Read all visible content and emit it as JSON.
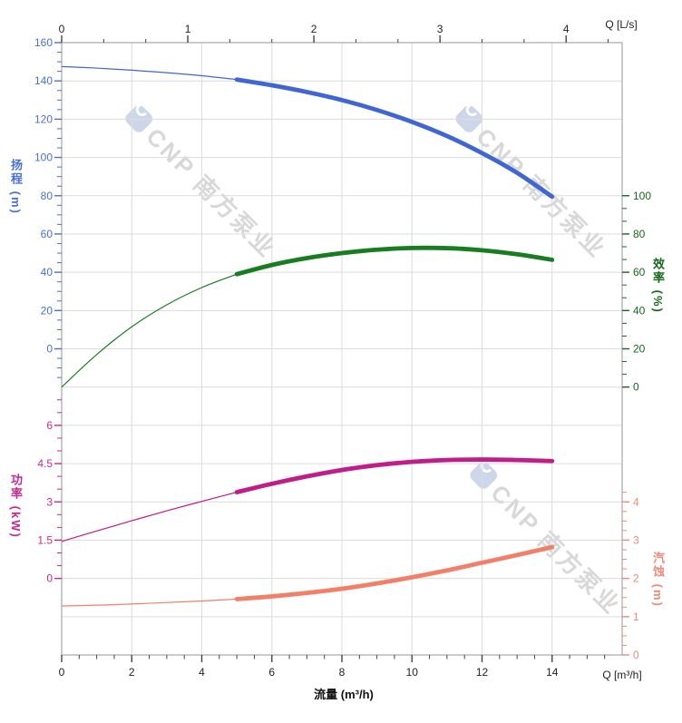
{
  "watermark": {
    "text": "CNP 南方泵业"
  },
  "chart_data": {
    "type": "line",
    "x_label_bottom": "流量 (m³/h)",
    "x_unit_bottom": "Q [m³/h]",
    "x_unit_top": "Q [L/s]",
    "x_m3h": [
      0,
      1,
      2,
      3,
      4,
      5,
      6,
      7,
      8,
      9,
      10,
      11,
      12,
      13,
      14
    ],
    "x_range_m3h": [
      0,
      16
    ],
    "x_range_Ls": [
      0,
      4.44
    ],
    "grid": true,
    "series": [
      {
        "id": "head",
        "name": "扬程",
        "unit": "m",
        "axis": "head",
        "color": "#3f66d4",
        "thick_from_x": 5,
        "values": [
          147.5,
          146.7,
          145.6,
          144.3,
          142.7,
          140.7,
          137.7,
          134.2,
          130.0,
          124.8,
          118.6,
          111.2,
          102.3,
          92.0,
          79.5
        ]
      },
      {
        "id": "eff",
        "name": "效率",
        "unit": "%",
        "axis": "eff",
        "color": "#187d20",
        "thick_from_x": 5,
        "values": [
          0,
          17,
          31.5,
          43,
          52,
          59,
          63.8,
          67.4,
          70.0,
          71.8,
          72.7,
          72.6,
          71.5,
          69.4,
          66.5
        ]
      },
      {
        "id": "power",
        "name": "功率",
        "unit": "kW",
        "axis": "power",
        "color": "#bf1d87",
        "thick_from_x": 5,
        "values": [
          1.45,
          1.86,
          2.26,
          2.65,
          3.02,
          3.38,
          3.71,
          4.0,
          4.25,
          4.44,
          4.57,
          4.64,
          4.66,
          4.64,
          4.6
        ]
      },
      {
        "id": "npsh",
        "name": "汽蚀",
        "unit": "m",
        "axis": "npsh",
        "color": "#f28069",
        "thick_from_x": 5,
        "values": [
          1.28,
          1.3,
          1.33,
          1.37,
          1.41,
          1.46,
          1.53,
          1.62,
          1.73,
          1.87,
          2.03,
          2.21,
          2.41,
          2.61,
          2.82
        ]
      }
    ],
    "axes": {
      "top": {
        "label": "Q [L/s]",
        "ticks": [
          "0",
          "1",
          "2",
          "3",
          "4"
        ],
        "tick_color": "#444",
        "label_color": "#222"
      },
      "bottom": {
        "label": "Q [m³/h]",
        "title": "流量 (m³/h)",
        "ticks": [
          "0",
          "2",
          "4",
          "6",
          "8",
          "10",
          "12",
          "14"
        ],
        "tick_color": "#444",
        "label_color": "#222"
      },
      "head": {
        "title": "扬程 (m)",
        "ticks": [
          "160",
          "140",
          "120",
          "100",
          "80",
          "60",
          "40",
          "20",
          "0"
        ],
        "color": "#4a70d6",
        "side": "left"
      },
      "eff": {
        "title": "效率 (%)",
        "ticks": [
          "100",
          "80",
          "60",
          "40",
          "20",
          "0"
        ],
        "color": "#14691c",
        "side": "right"
      },
      "power": {
        "title": "功率 (kW)",
        "ticks": [
          "6",
          "4.5",
          "3",
          "1.5",
          "0"
        ],
        "color": "#c52a92",
        "side": "left"
      },
      "npsh": {
        "title": "汽蚀 (m)",
        "ticks": [
          "4",
          "3",
          "2",
          "1",
          "0"
        ],
        "color": "#f28977",
        "side": "right"
      }
    },
    "colors": {
      "grid": "#dcdcdc",
      "border": "#a8a8a8"
    }
  }
}
